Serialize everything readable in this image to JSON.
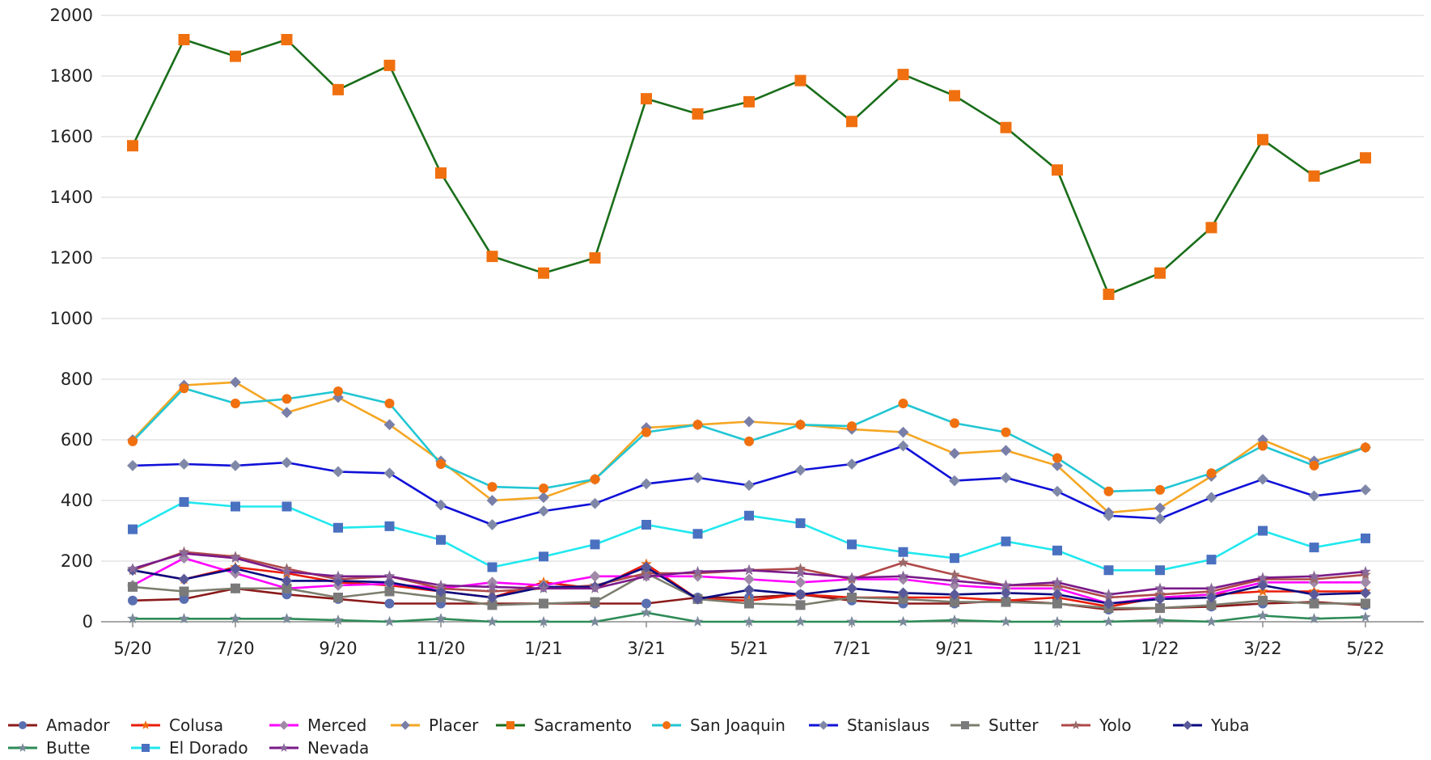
{
  "chart_data": {
    "type": "line",
    "title": "",
    "xlabel": "",
    "ylabel": "",
    "ylim": [
      0,
      2000
    ],
    "grid": true,
    "legend_position": "bottom",
    "x_ticks": [
      "5/20",
      "7/20",
      "9/20",
      "11/20",
      "1/21",
      "3/21",
      "5/21",
      "7/21",
      "9/21",
      "11/21",
      "1/22",
      "3/22",
      "5/22"
    ],
    "y_ticks": [
      0,
      200,
      400,
      600,
      800,
      1000,
      1200,
      1400,
      1600,
      1800,
      2000
    ],
    "categories": [
      "5/20",
      "6/20",
      "7/20",
      "8/20",
      "9/20",
      "10/20",
      "11/20",
      "12/20",
      "1/21",
      "2/21",
      "3/21",
      "4/21",
      "5/21",
      "6/21",
      "7/21",
      "8/21",
      "9/21",
      "10/21",
      "11/21",
      "12/21",
      "1/22",
      "2/22",
      "3/22",
      "4/22",
      "5/22"
    ],
    "series": [
      {
        "name": "Amador",
        "color": "#8b1a1a",
        "marker": "#5a6fb0",
        "marker_shape": "circle",
        "values": [
          70,
          75,
          110,
          90,
          75,
          60,
          60,
          60,
          60,
          60,
          60,
          80,
          80,
          90,
          70,
          60,
          60,
          70,
          60,
          40,
          45,
          50,
          60,
          65,
          55
        ]
      },
      {
        "name": "Colusa",
        "color": "#e81c0b",
        "marker": "#f06a10",
        "marker_shape": "star",
        "values": [
          170,
          140,
          180,
          160,
          130,
          120,
          100,
          80,
          130,
          110,
          190,
          75,
          70,
          90,
          80,
          80,
          80,
          70,
          80,
          50,
          80,
          90,
          100,
          100,
          100
        ]
      },
      {
        "name": "Merced",
        "color": "#ff00ff",
        "marker": "#a08aa8",
        "marker_shape": "diamond",
        "values": [
          120,
          210,
          160,
          110,
          120,
          125,
          110,
          130,
          120,
          150,
          150,
          150,
          140,
          130,
          140,
          140,
          120,
          110,
          110,
          60,
          80,
          90,
          130,
          130,
          130
        ]
      },
      {
        "name": "Placer",
        "color": "#f5a623",
        "marker": "#7a7fa8",
        "marker_shape": "diamond",
        "values": [
          600,
          780,
          790,
          690,
          740,
          650,
          530,
          400,
          410,
          470,
          640,
          650,
          660,
          650,
          635,
          625,
          555,
          565,
          515,
          360,
          375,
          480,
          600,
          530,
          575
        ]
      },
      {
        "name": "Sacramento",
        "color": "#1a6e1a",
        "marker": "#f07010",
        "marker_shape": "square",
        "values": [
          1570,
          1920,
          1865,
          1920,
          1755,
          1835,
          1480,
          1205,
          1150,
          1200,
          1725,
          1675,
          1715,
          1785,
          1650,
          1805,
          1735,
          1630,
          1490,
          1080,
          1150,
          1300,
          1590,
          1470,
          1530
        ]
      },
      {
        "name": "San Joaquin",
        "color": "#22c6d3",
        "marker": "#f07010",
        "marker_shape": "circle",
        "values": [
          595,
          770,
          720,
          735,
          760,
          720,
          520,
          445,
          440,
          470,
          625,
          650,
          595,
          650,
          645,
          720,
          655,
          625,
          540,
          430,
          435,
          490,
          580,
          515,
          575
        ]
      },
      {
        "name": "Stanislaus",
        "color": "#1010d8",
        "marker": "#8088a8",
        "marker_shape": "diamond",
        "values": [
          515,
          520,
          515,
          525,
          495,
          490,
          385,
          320,
          365,
          390,
          455,
          475,
          450,
          500,
          520,
          580,
          465,
          475,
          430,
          350,
          340,
          410,
          470,
          415,
          435
        ]
      },
      {
        "name": "Sutter",
        "color": "#7d7d6e",
        "marker": "#7a7a7a",
        "marker_shape": "square",
        "values": [
          115,
          100,
          110,
          110,
          80,
          100,
          80,
          55,
          60,
          65,
          160,
          75,
          60,
          55,
          80,
          75,
          65,
          65,
          60,
          45,
          45,
          55,
          70,
          60,
          60
        ]
      },
      {
        "name": "Yolo",
        "color": "#b04848",
        "marker": "#9a6a6a",
        "marker_shape": "star",
        "values": [
          170,
          230,
          215,
          175,
          140,
          150,
          110,
          100,
          110,
          120,
          160,
          160,
          170,
          175,
          140,
          195,
          155,
          120,
          120,
          80,
          90,
          100,
          140,
          140,
          155
        ]
      },
      {
        "name": "Yuba",
        "color": "#0a0a80",
        "marker": "#5a5a9a",
        "marker_shape": "diamond",
        "values": [
          170,
          140,
          175,
          135,
          135,
          130,
          100,
          80,
          115,
          115,
          180,
          75,
          105,
          90,
          110,
          95,
          90,
          95,
          90,
          60,
          75,
          80,
          120,
          90,
          95
        ]
      },
      {
        "name": "Butte",
        "color": "#2e8b57",
        "marker": "#7a8a9a",
        "marker_shape": "star",
        "values": [
          10,
          10,
          10,
          10,
          5,
          0,
          10,
          0,
          0,
          0,
          30,
          0,
          0,
          0,
          0,
          0,
          5,
          0,
          0,
          0,
          5,
          0,
          20,
          10,
          15
        ]
      },
      {
        "name": "El Dorado",
        "color": "#20e8ee",
        "marker": "#4a70c0",
        "marker_shape": "square",
        "values": [
          305,
          395,
          380,
          380,
          310,
          315,
          270,
          180,
          215,
          255,
          320,
          290,
          350,
          325,
          255,
          230,
          210,
          265,
          235,
          170,
          170,
          205,
          300,
          245,
          275
        ]
      },
      {
        "name": "Nevada",
        "color": "#7a1a8a",
        "marker": "#8a6a9a",
        "marker_shape": "star",
        "values": [
          175,
          225,
          210,
          165,
          150,
          150,
          120,
          115,
          110,
          110,
          150,
          165,
          170,
          160,
          145,
          150,
          135,
          120,
          130,
          90,
          110,
          110,
          145,
          150,
          165
        ]
      }
    ]
  }
}
